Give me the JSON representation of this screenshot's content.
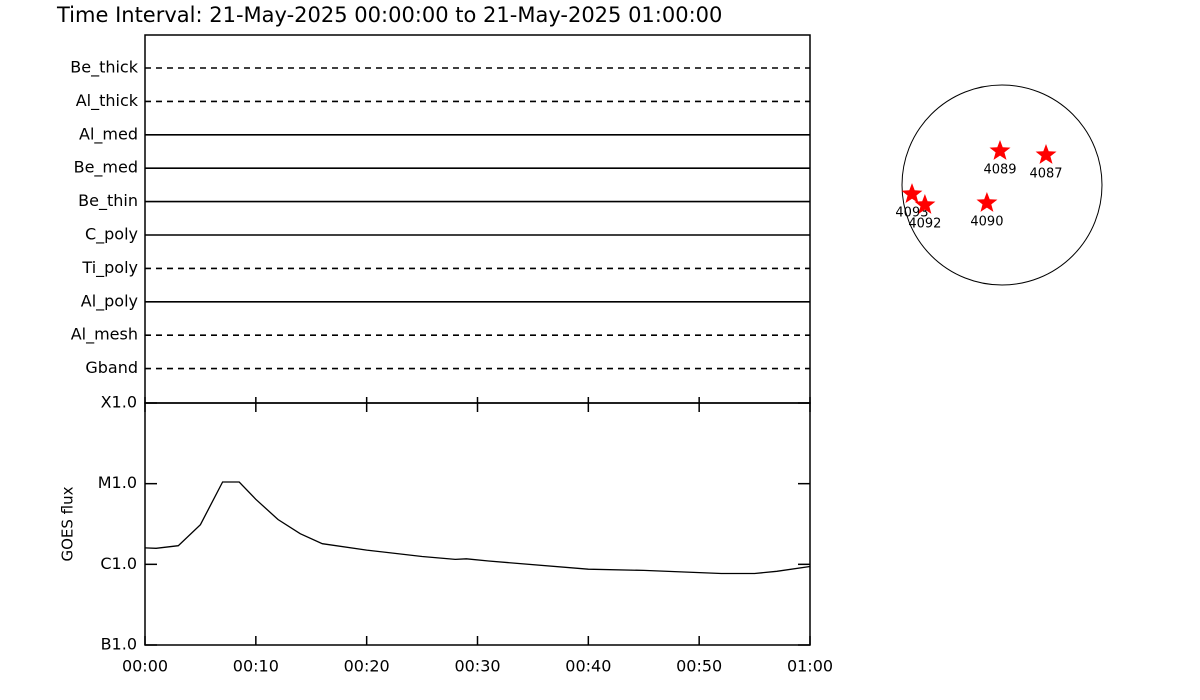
{
  "chart_data": [
    {
      "type": "timeline",
      "title": "Time Interval: 21-May-2025 00:00:00 to 21-May-2025 01:00:00",
      "categories": [
        "Be_thick",
        "Al_thick",
        "Al_med",
        "Be_med",
        "Be_thin",
        "C_poly",
        "Ti_poly",
        "Al_poly",
        "Al_mesh",
        "Gband"
      ],
      "styles": [
        "dashed",
        "dashed",
        "solid",
        "solid",
        "solid",
        "solid",
        "dashed",
        "solid",
        "dashed",
        "dashed"
      ],
      "color": "#000000"
    },
    {
      "type": "line",
      "ylabel": "GOES flux",
      "log_y": true,
      "color": "#000000",
      "x": [
        0,
        1,
        3,
        5,
        7,
        8.5,
        10,
        12,
        14,
        16,
        20,
        25,
        28,
        29,
        31,
        40,
        45,
        52,
        55,
        57,
        60
      ],
      "values": [
        1.6e-06,
        1.58e-06,
        1.7e-06,
        3.1e-06,
        1.05e-05,
        1.05e-05,
        6.4e-06,
        3.6e-06,
        2.4e-06,
        1.8e-06,
        1.5e-06,
        1.25e-06,
        1.15e-06,
        1.17e-06,
        1.1e-06,
        8.7e-07,
        8.4e-07,
        7.7e-07,
        7.7e-07,
        8.2e-07,
        9.4e-07
      ],
      "xlim": [
        0,
        60
      ],
      "xticks": [
        {
          "value": 0,
          "label": "00:00"
        },
        {
          "value": 10,
          "label": "00:10"
        },
        {
          "value": 20,
          "label": "00:20"
        },
        {
          "value": 30,
          "label": "00:30"
        },
        {
          "value": 40,
          "label": "00:40"
        },
        {
          "value": 50,
          "label": "00:50"
        },
        {
          "value": 60,
          "label": "01:00"
        }
      ],
      "ylim": [
        1e-07,
        0.0001
      ],
      "yticks": [
        {
          "value": 1e-07,
          "label": "B1.0"
        },
        {
          "value": 1e-06,
          "label": "C1.0"
        },
        {
          "value": 1e-05,
          "label": "M1.0"
        },
        {
          "value": 0.0001,
          "label": "X1.0"
        }
      ]
    },
    {
      "type": "disk",
      "color": "#ff0000",
      "xlim": [
        -1000,
        1000
      ],
      "ylim": [
        -1000,
        1000
      ],
      "labels": [
        "4089",
        "4087",
        "4093",
        "4092",
        "4090"
      ],
      "x": [
        -19,
        418,
        -855,
        -732,
        -143
      ],
      "y": [
        323,
        285,
        -86,
        -190,
        -171
      ]
    }
  ]
}
